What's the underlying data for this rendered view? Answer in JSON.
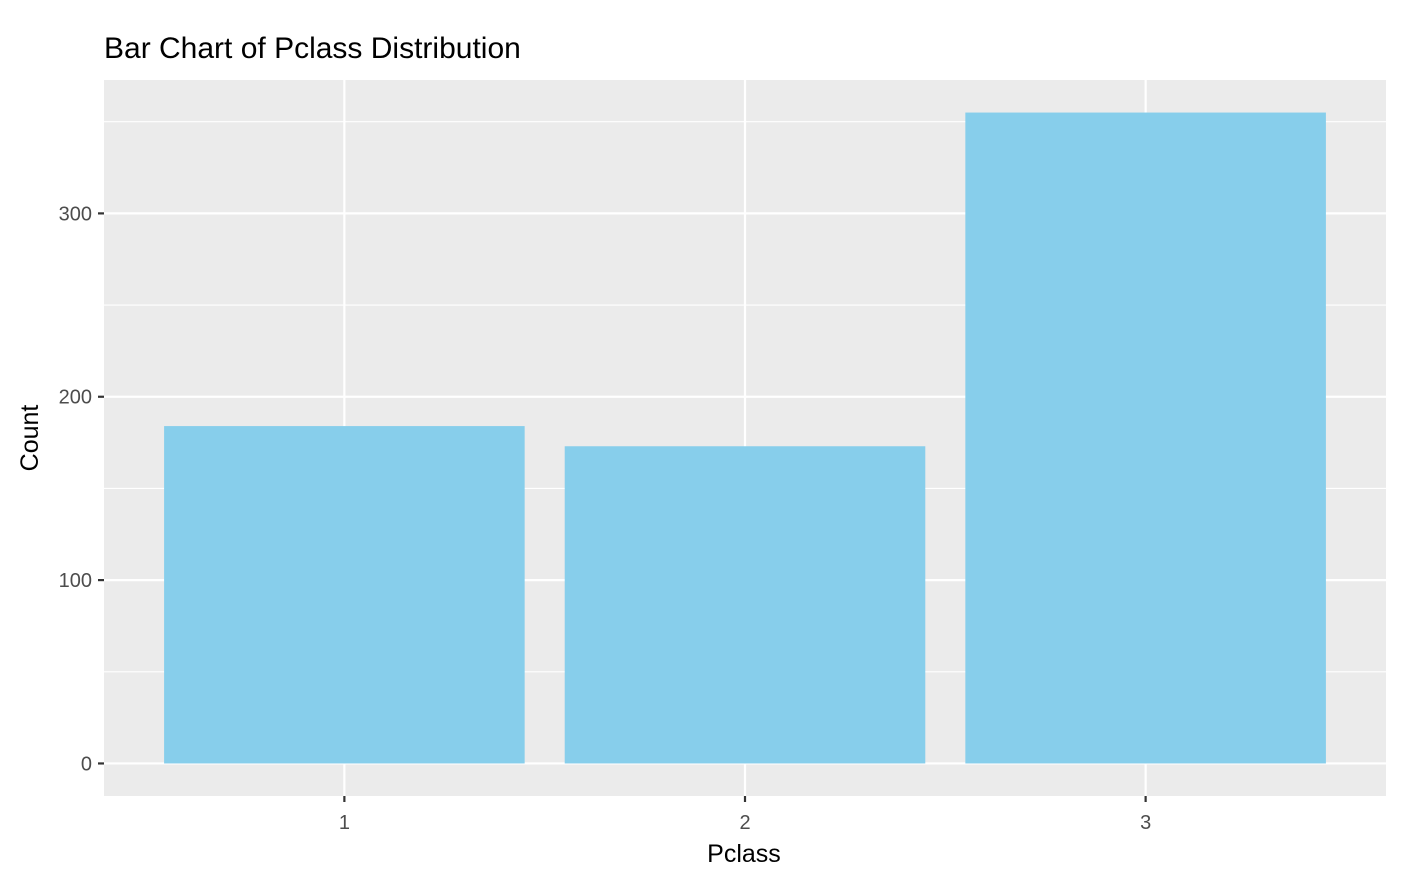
{
  "chart_data": {
    "type": "bar",
    "title": "Bar Chart of Pclass Distribution",
    "xlabel": "Pclass",
    "ylabel": "Count",
    "categories": [
      "1",
      "2",
      "3"
    ],
    "values": [
      184,
      173,
      355
    ],
    "ylim": [
      -17.75,
      372.75
    ],
    "yticks": [
      0,
      100,
      200,
      300
    ],
    "ytick_labels": [
      "0",
      "100",
      "200",
      "300"
    ],
    "minor_yticks": [
      50,
      150,
      250,
      350
    ],
    "grid": true,
    "legend": "none",
    "bar_color": "#87CEEB",
    "panel_background": "#EBEBEB",
    "grid_color": "#FFFFFF"
  }
}
